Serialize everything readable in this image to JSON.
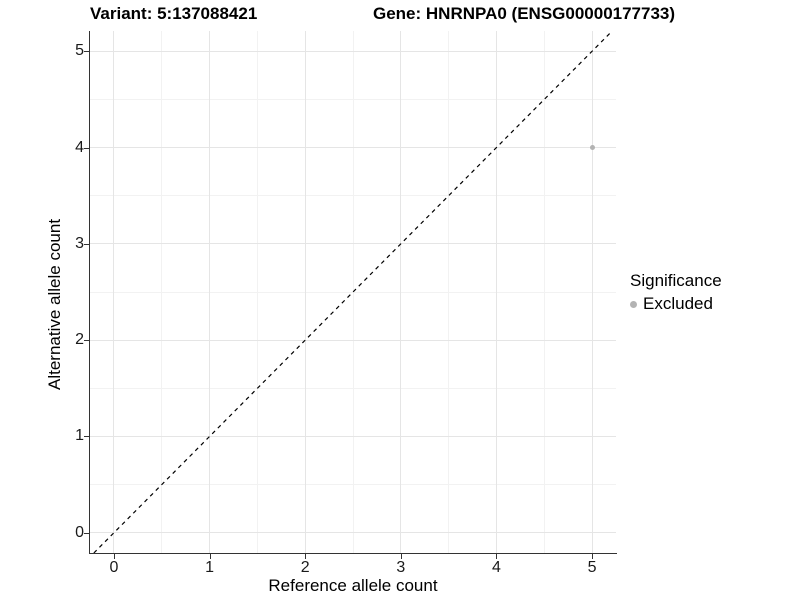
{
  "chart_data": {
    "type": "scatter",
    "title_left": "Variant: 5:137088421",
    "title_right": "Gene: HNRNPA0 (ENSG00000177733)",
    "xlabel": "Reference allele count",
    "ylabel": "Alternative allele count",
    "xticks": [
      0,
      1,
      2,
      3,
      4,
      5
    ],
    "yticks": [
      0,
      1,
      2,
      3,
      4,
      5
    ],
    "xlim": [
      -0.25,
      5.25
    ],
    "ylim": [
      -0.21,
      5.21
    ],
    "minor_step": 0.5,
    "grid": "major+minor",
    "legend_position": "right",
    "legend": {
      "title": "Significance",
      "items": [
        {
          "label": "Excluded",
          "color": "#b3b3b3"
        }
      ]
    },
    "series": [
      {
        "name": "Excluded",
        "color": "#b3b3b3",
        "marker": "circle",
        "marker_size_px": 5,
        "points": [
          [
            5,
            4
          ]
        ]
      }
    ],
    "reference_line": {
      "kind": "identity y=x",
      "style": "dashed",
      "color": "#000000"
    }
  },
  "colors": {
    "background": "#ffffff",
    "axis": "#333333",
    "grid_major": "#e5e5e5",
    "grid_minor": "#f2f2f2",
    "tick_text": "#1a1a1a",
    "point": "#b3b3b3"
  }
}
